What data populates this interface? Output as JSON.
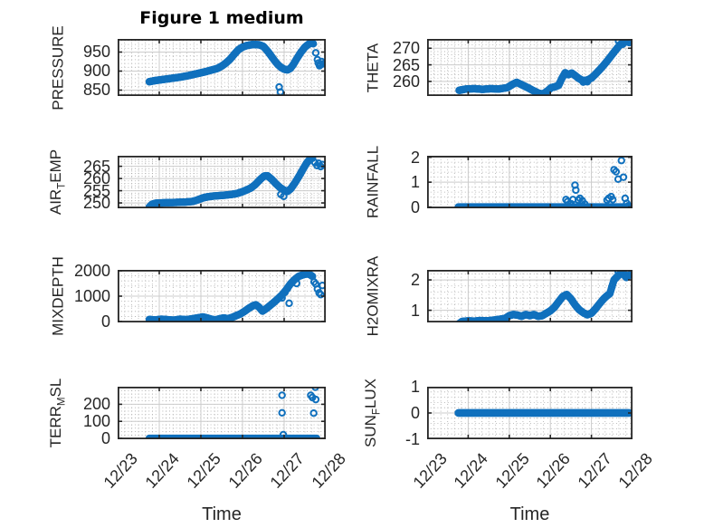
{
  "figure": {
    "title": "Figure 1 medium"
  },
  "style": {
    "marker_color": "#1070bd",
    "axis_color": "#252525",
    "grid_color": "#cccccc",
    "minor_grid_color": "#aaaaaa",
    "text_color": "#262626",
    "background": "#ffffff",
    "marker_radius": 3.2,
    "marker_line_width": 2
  },
  "chart_data": [
    {
      "type": "scatter",
      "name": "PRESSURE",
      "ylabel_parts": [
        {
          "t": "PRESSURE",
          "sub": false
        }
      ],
      "yticks": [
        850,
        900,
        950
      ],
      "ytick_labels": [
        "850",
        "900",
        "950"
      ],
      "ylim": [
        834.5,
        984.5
      ],
      "xlim": [
        0,
        5
      ],
      "xticks": [
        0,
        1,
        2,
        3,
        4,
        5
      ],
      "xtick_labels": [
        "12/23",
        "12/24",
        "12/25",
        "12/26",
        "12/27",
        "12/28"
      ],
      "x_minor": 6,
      "y_minor": 5,
      "show_x_labels": false,
      "series": {
        "step": 0.016,
        "x": [
          0.76,
          0.9,
          1.1,
          1.3,
          1.5,
          1.7,
          1.9,
          2.1,
          2.3,
          2.4,
          2.5,
          2.6,
          2.7,
          2.8,
          2.9,
          3.0,
          3.1,
          3.25,
          3.4,
          3.5,
          3.55,
          3.62,
          3.7,
          3.78,
          3.85,
          3.92,
          4.0,
          4.08,
          4.15,
          4.22,
          4.3,
          4.4,
          4.5,
          4.58,
          4.65,
          4.7
        ],
        "y": [
          872,
          875,
          878,
          881,
          884,
          888,
          893,
          898,
          904,
          907,
          913,
          921,
          931,
          944,
          956,
          963,
          967,
          970,
          969,
          965,
          959,
          950,
          938,
          926,
          917,
          910,
          905,
          903,
          907,
          917,
          932,
          949,
          963,
          970,
          974,
          972
        ]
      },
      "scatter": [
        [
          3.88,
          858
        ],
        [
          3.91,
          845
        ],
        [
          4.76,
          948
        ],
        [
          4.8,
          930
        ],
        [
          4.82,
          921
        ],
        [
          4.85,
          914
        ],
        [
          4.88,
          917
        ],
        [
          4.9,
          925
        ],
        [
          4.93,
          919
        ]
      ]
    },
    {
      "type": "scatter",
      "name": "THETA",
      "ylabel_parts": [
        {
          "t": "THETA",
          "sub": false
        }
      ],
      "yticks": [
        260,
        265,
        270
      ],
      "ytick_labels": [
        "260",
        "265",
        "270"
      ],
      "ylim": [
        255.6,
        272.8
      ],
      "xlim": [
        0,
        5
      ],
      "xticks": [
        0,
        1,
        2,
        3,
        4,
        5
      ],
      "xtick_labels": [
        "12/23",
        "12/24",
        "12/25",
        "12/26",
        "12/27",
        "12/28"
      ],
      "x_minor": 6,
      "y_minor": 5,
      "show_x_labels": false,
      "series": {
        "step": 0.016,
        "x": [
          0.78,
          0.95,
          1.15,
          1.35,
          1.55,
          1.75,
          1.95,
          2.08,
          2.18,
          2.3,
          2.45,
          2.6,
          2.72,
          2.82,
          2.92,
          3.02,
          3.12,
          3.2,
          3.28,
          3.36,
          3.44,
          3.52,
          3.6,
          3.68,
          3.76,
          3.84,
          3.92,
          4.0,
          4.1,
          4.2,
          4.3,
          4.4,
          4.5,
          4.6,
          4.7,
          4.8,
          4.9
        ],
        "y": [
          257.3,
          257.7,
          257.8,
          257.6,
          257.8,
          257.7,
          258.1,
          259.1,
          259.7,
          259.0,
          258.1,
          257.1,
          256.4,
          256.2,
          257.0,
          258.1,
          258.4,
          258.8,
          260.9,
          262.6,
          262.0,
          262.5,
          261.8,
          261.0,
          260.4,
          260.2,
          260.5,
          261.0,
          262.2,
          263.5,
          264.9,
          266.4,
          268.0,
          269.6,
          271.1,
          271.9,
          271.9
        ]
      },
      "scatter": [
        [
          3.8,
          259.8
        ],
        [
          3.9,
          259.9
        ],
        [
          4.66,
          272.2
        ],
        [
          4.76,
          271.2
        ],
        [
          4.85,
          272.1
        ],
        [
          4.92,
          271.7
        ]
      ]
    },
    {
      "type": "scatter",
      "name": "AIR_TEMP",
      "ylabel_parts": [
        {
          "t": "AIR",
          "sub": false
        },
        {
          "t": "T",
          "sub": true
        },
        {
          "t": "EMP",
          "sub": false
        }
      ],
      "yticks": [
        250,
        255,
        260,
        265
      ],
      "ytick_labels": [
        "250",
        "255",
        "260",
        "265"
      ],
      "ylim": [
        247.8,
        269.3
      ],
      "xlim": [
        0,
        5
      ],
      "xticks": [
        0,
        1,
        2,
        3,
        4,
        5
      ],
      "xtick_labels": [
        "12/23",
        "12/24",
        "12/25",
        "12/26",
        "12/27",
        "12/28"
      ],
      "x_minor": 6,
      "y_minor": 5,
      "show_x_labels": false,
      "series": {
        "step": 0.016,
        "x": [
          0.76,
          0.82,
          0.92,
          1.05,
          1.2,
          1.4,
          1.6,
          1.8,
          1.92,
          2.04,
          2.16,
          2.3,
          2.45,
          2.6,
          2.75,
          2.88,
          3.0,
          3.1,
          3.2,
          3.3,
          3.38,
          3.45,
          3.52,
          3.6,
          3.7,
          3.8,
          3.9,
          4.0,
          4.08,
          4.16,
          4.26,
          4.36,
          4.46,
          4.54,
          4.62,
          4.68
        ],
        "y": [
          248.3,
          249.4,
          249.9,
          250.0,
          250.1,
          250.2,
          250.3,
          250.6,
          251.2,
          252.0,
          252.5,
          252.8,
          253.0,
          253.2,
          253.5,
          253.9,
          254.6,
          255.3,
          256.1,
          257.4,
          258.8,
          260.0,
          261.0,
          261.1,
          259.7,
          257.9,
          256.3,
          255.2,
          254.7,
          255.8,
          258.2,
          261.0,
          264.0,
          266.3,
          267.9,
          268.3
        ]
      },
      "scatter": [
        [
          3.92,
          253.5
        ],
        [
          3.99,
          252.7
        ],
        [
          4.74,
          266.5
        ],
        [
          4.79,
          265.3
        ],
        [
          4.83,
          266.2
        ],
        [
          4.88,
          264.9
        ],
        [
          4.92,
          265.7
        ]
      ]
    },
    {
      "type": "scatter",
      "name": "RAINFALL",
      "ylabel_parts": [
        {
          "t": "RAINFALL",
          "sub": false
        }
      ],
      "yticks": [
        0,
        1,
        2
      ],
      "ytick_labels": [
        "0",
        "1",
        "2"
      ],
      "ylim": [
        -0.05,
        2.06
      ],
      "xlim": [
        0,
        5
      ],
      "xticks": [
        0,
        1,
        2,
        3,
        4,
        5
      ],
      "xtick_labels": [
        "12/23",
        "12/24",
        "12/25",
        "12/26",
        "12/27",
        "12/28"
      ],
      "x_minor": 6,
      "y_minor": 5,
      "show_x_labels": false,
      "series": {
        "step": 0.016,
        "x": [
          0.76,
          4.9
        ],
        "y": [
          0,
          0
        ]
      },
      "scatter": [
        [
          3.38,
          0.3
        ],
        [
          3.42,
          0.22
        ],
        [
          3.5,
          0.14
        ],
        [
          3.55,
          0.3
        ],
        [
          3.6,
          0.88
        ],
        [
          3.62,
          0.68
        ],
        [
          3.68,
          0.28
        ],
        [
          3.72,
          0.35
        ],
        [
          3.78,
          0.25
        ],
        [
          3.84,
          0.12
        ],
        [
          4.38,
          0.28
        ],
        [
          4.42,
          0.35
        ],
        [
          4.48,
          0.42
        ],
        [
          4.52,
          0.3
        ],
        [
          4.55,
          1.5
        ],
        [
          4.6,
          1.42
        ],
        [
          4.65,
          1.12
        ],
        [
          4.73,
          1.87
        ],
        [
          4.78,
          1.2
        ],
        [
          4.82,
          0.35
        ],
        [
          4.86,
          0.15
        ],
        [
          4.9,
          0.05
        ]
      ]
    },
    {
      "type": "scatter",
      "name": "MIXDEPTH",
      "ylabel_parts": [
        {
          "t": "MIXDEPTH",
          "sub": false
        }
      ],
      "yticks": [
        0,
        1000,
        2000
      ],
      "ytick_labels": [
        "0",
        "1000",
        "2000"
      ],
      "ylim": [
        -35,
        2035
      ],
      "xlim": [
        0,
        5
      ],
      "xticks": [
        0,
        1,
        2,
        3,
        4,
        5
      ],
      "xtick_labels": [
        "12/23",
        "12/24",
        "12/25",
        "12/26",
        "12/27",
        "12/28"
      ],
      "x_minor": 6,
      "y_minor": 5,
      "show_x_labels": false,
      "series": {
        "step": 0.016,
        "x": [
          0.76,
          0.9,
          1.05,
          1.2,
          1.35,
          1.5,
          1.65,
          1.8,
          1.95,
          2.05,
          2.15,
          2.25,
          2.35,
          2.45,
          2.55,
          2.65,
          2.75,
          2.85,
          2.95,
          3.05,
          3.15,
          3.25,
          3.32,
          3.4,
          3.48,
          3.58,
          3.7,
          3.82,
          3.95,
          4.05,
          4.15,
          4.25,
          4.35,
          4.45,
          4.55,
          4.62,
          4.68
        ],
        "y": [
          80,
          60,
          90,
          70,
          50,
          90,
          70,
          110,
          150,
          180,
          140,
          90,
          60,
          110,
          140,
          110,
          160,
          230,
          300,
          400,
          520,
          620,
          660,
          560,
          410,
          520,
          680,
          850,
          1050,
          1250,
          1480,
          1650,
          1780,
          1840,
          1880,
          1850,
          1780
        ]
      },
      "scatter": [
        [
          3.95,
          930
        ],
        [
          4.02,
          1150
        ],
        [
          4.08,
          1300
        ],
        [
          4.12,
          720
        ],
        [
          4.3,
          1500
        ],
        [
          4.72,
          1560
        ],
        [
          4.76,
          1480
        ],
        [
          4.8,
          1280
        ],
        [
          4.84,
          1130
        ],
        [
          4.88,
          1060
        ],
        [
          4.92,
          1420
        ]
      ]
    },
    {
      "type": "scatter",
      "name": "H2OMIXRA",
      "ylabel_parts": [
        {
          "t": "H2OMIXRA",
          "sub": false
        }
      ],
      "yticks": [
        1,
        2
      ],
      "ytick_labels": [
        "1",
        "2"
      ],
      "ylim": [
        0.6,
        2.33
      ],
      "xlim": [
        0,
        5
      ],
      "xticks": [
        0,
        1,
        2,
        3,
        4,
        5
      ],
      "xtick_labels": [
        "12/23",
        "12/24",
        "12/25",
        "12/26",
        "12/27",
        "12/28"
      ],
      "x_minor": 6,
      "y_minor": 5,
      "show_x_labels": false,
      "series": {
        "step": 0.016,
        "x": [
          0.78,
          0.85,
          1.0,
          1.15,
          1.3,
          1.45,
          1.6,
          1.75,
          1.9,
          2.0,
          2.1,
          2.2,
          2.3,
          2.4,
          2.5,
          2.6,
          2.7,
          2.8,
          2.9,
          3.0,
          3.1,
          3.2,
          3.3,
          3.4,
          3.5,
          3.6,
          3.7,
          3.8,
          3.9,
          4.0,
          4.1,
          4.2,
          4.3,
          4.38,
          4.45,
          4.55,
          4.62,
          4.7,
          4.78,
          4.85,
          4.92
        ],
        "y": [
          0.56,
          0.63,
          0.65,
          0.64,
          0.66,
          0.65,
          0.67,
          0.7,
          0.73,
          0.82,
          0.86,
          0.84,
          0.8,
          0.86,
          0.82,
          0.86,
          0.8,
          0.82,
          0.9,
          0.98,
          1.1,
          1.28,
          1.45,
          1.52,
          1.38,
          1.18,
          1.02,
          0.92,
          0.85,
          0.9,
          1.05,
          1.22,
          1.38,
          1.48,
          1.55,
          2.0,
          2.1,
          2.2,
          2.22,
          2.08,
          2.16
        ]
      },
      "scatter": [
        [
          4.5,
          1.78
        ],
        [
          4.65,
          2.28
        ],
        [
          4.73,
          2.3
        ],
        [
          4.82,
          2.12
        ],
        [
          4.88,
          2.25
        ]
      ]
    },
    {
      "type": "scatter",
      "name": "TERR_MSL",
      "ylabel_parts": [
        {
          "t": "TERR",
          "sub": false
        },
        {
          "t": "M",
          "sub": true
        },
        {
          "t": "SL",
          "sub": false
        }
      ],
      "yticks": [
        0,
        100,
        200
      ],
      "ytick_labels": [
        "0",
        "100",
        "200"
      ],
      "ylim": [
        -5,
        303
      ],
      "xlim": [
        0,
        5
      ],
      "xticks": [
        0,
        1,
        2,
        3,
        4,
        5
      ],
      "xtick_labels": [
        "12/23",
        "12/24",
        "12/25",
        "12/26",
        "12/27",
        "12/28"
      ],
      "x_minor": 6,
      "y_minor": 5,
      "show_x_labels": true,
      "xlabel": "Time",
      "series": {
        "step": 0.016,
        "x": [
          0.76,
          4.78
        ],
        "y": [
          0,
          0
        ]
      },
      "scatter": [
        [
          3.95,
          253
        ],
        [
          3.95,
          150
        ],
        [
          3.98,
          22
        ],
        [
          4.64,
          253
        ],
        [
          4.68,
          240
        ],
        [
          4.71,
          148
        ],
        [
          4.75,
          300
        ],
        [
          4.76,
          228
        ]
      ]
    },
    {
      "type": "scatter",
      "name": "SUN_FLUX",
      "ylabel_parts": [
        {
          "t": "SUN",
          "sub": false
        },
        {
          "t": "F",
          "sub": true
        },
        {
          "t": "LUX",
          "sub": false
        }
      ],
      "yticks": [
        -1,
        0,
        1
      ],
      "ytick_labels": [
        "-1",
        "0",
        "1"
      ],
      "ylim": [
        -1,
        1
      ],
      "xlim": [
        0,
        5
      ],
      "xticks": [
        0,
        1,
        2,
        3,
        4,
        5
      ],
      "xtick_labels": [
        "12/23",
        "12/24",
        "12/25",
        "12/26",
        "12/27",
        "12/28"
      ],
      "x_minor": 6,
      "y_minor": 5,
      "show_x_labels": true,
      "xlabel": "Time",
      "series": {
        "step": 0.016,
        "x": [
          0.76,
          4.93
        ],
        "y": [
          0,
          0
        ]
      },
      "scatter": []
    }
  ]
}
